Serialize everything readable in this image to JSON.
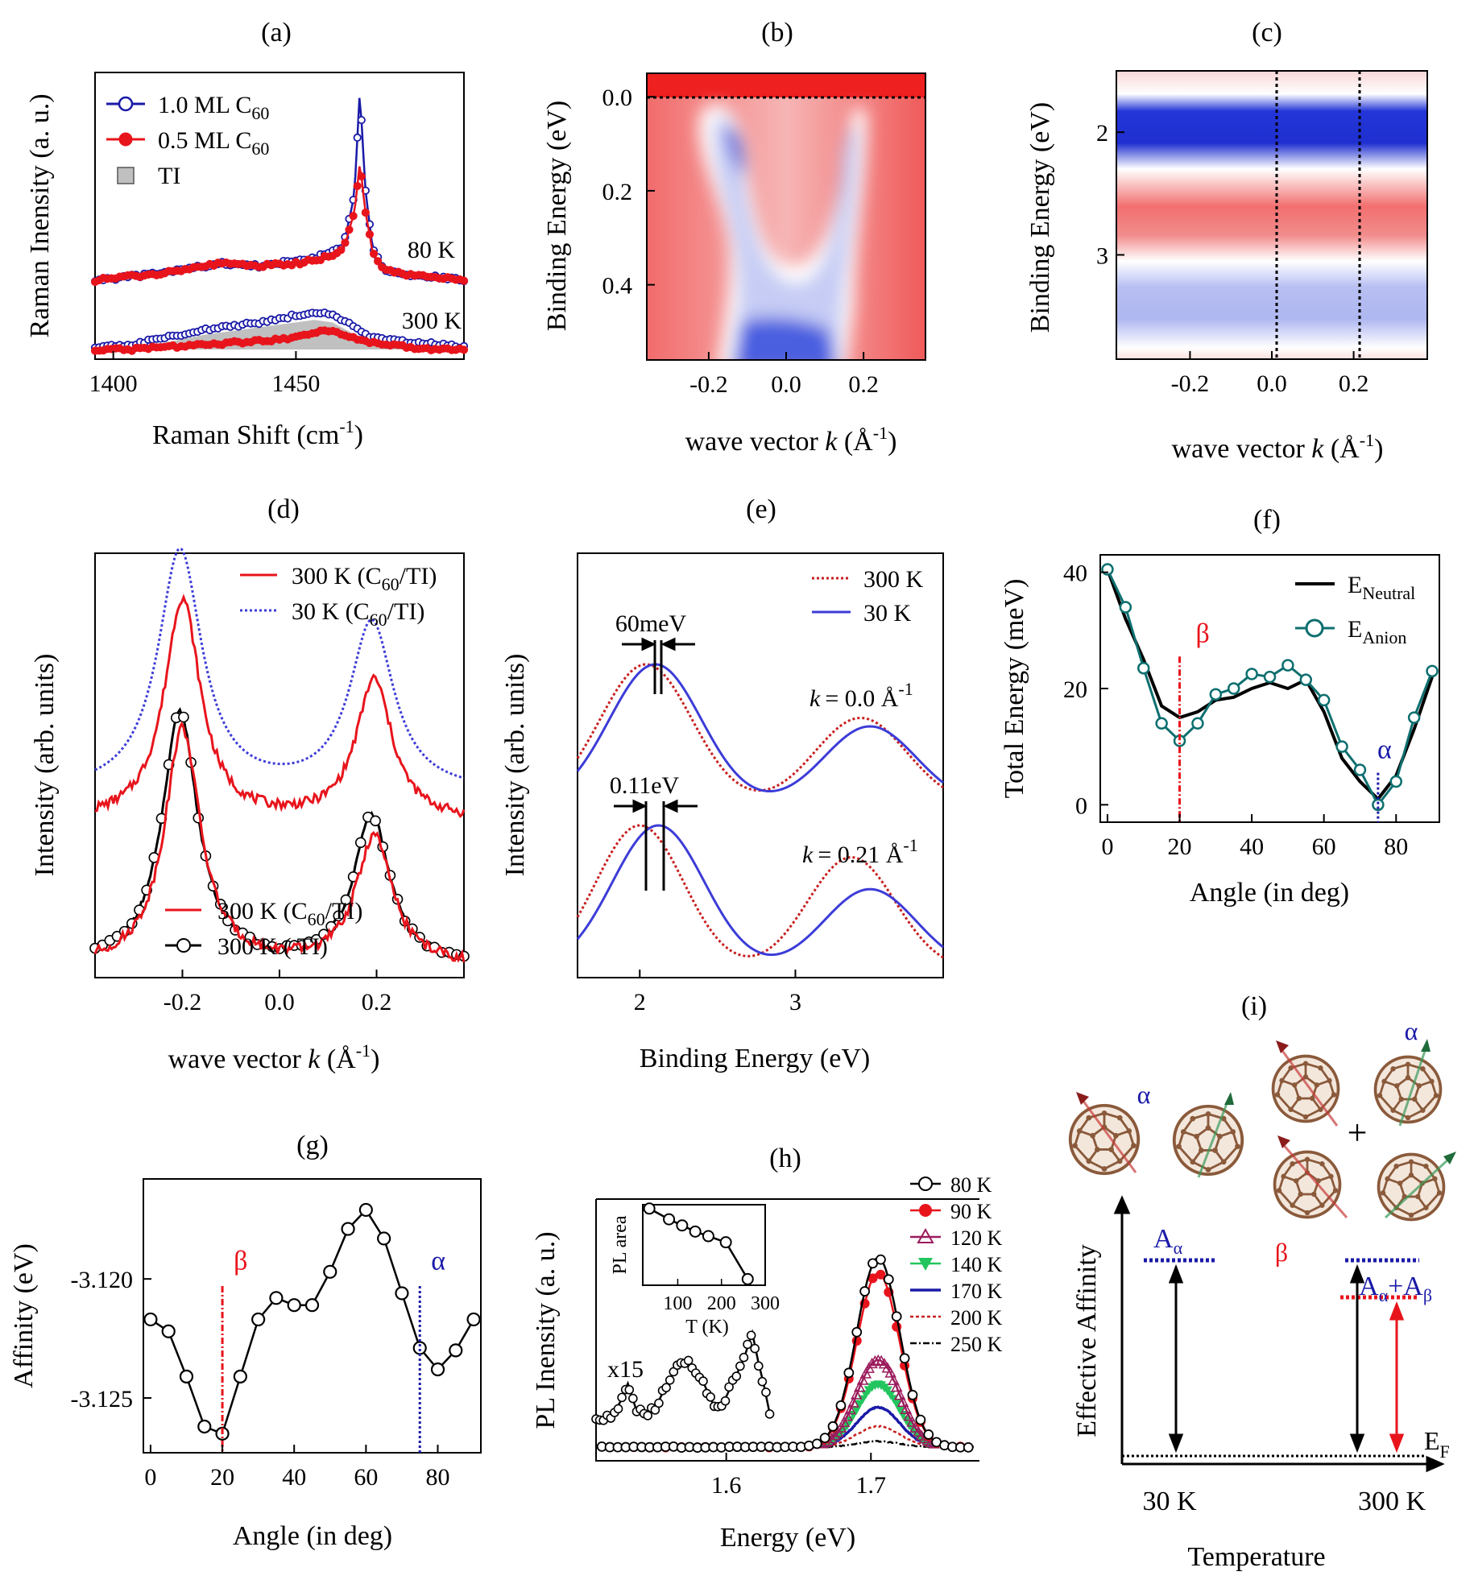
{
  "chart_data": [
    {
      "id": "a",
      "panel_label": "(a)",
      "type": "line",
      "xlabel": "Raman Shift (cm",
      "xlabel_sup": "-1",
      "xlabel_end": ")",
      "ylabel": "Raman Inensity (a. u.)",
      "xlim": [
        1395,
        1496
      ],
      "xticks": [
        1400,
        1450
      ],
      "legend": [
        {
          "text": "1.0 ML C",
          "sub": "60"
        },
        {
          "text": "0.5 ML C",
          "sub": "60"
        },
        {
          "text": "TI"
        }
      ],
      "annotations": [
        "80 K",
        "300 K"
      ],
      "series": [
        {
          "name": "1.0 ML C60 80 K",
          "color": "#1a1aa8",
          "marker": "open-circle",
          "x": [
            1395,
            1410,
            1420,
            1430,
            1440,
            1450,
            1455,
            1460,
            1463,
            1466,
            1467.5,
            1469,
            1471,
            1474,
            1480,
            1490,
            1496
          ],
          "y": [
            0.3,
            0.32,
            0.34,
            0.36,
            0.35,
            0.37,
            0.38,
            0.4,
            0.42,
            0.6,
            0.98,
            0.62,
            0.42,
            0.34,
            0.32,
            0.31,
            0.3
          ]
        },
        {
          "name": "0.5 ML C60 80 K",
          "color": "#e8141c",
          "marker": "filled-circle",
          "x": [
            1395,
            1410,
            1420,
            1430,
            1440,
            1450,
            1455,
            1460,
            1463,
            1466,
            1467.5,
            1469,
            1471,
            1474,
            1480,
            1490,
            1496
          ],
          "y": [
            0.3,
            0.32,
            0.34,
            0.36,
            0.35,
            0.36,
            0.37,
            0.39,
            0.41,
            0.54,
            0.72,
            0.55,
            0.4,
            0.34,
            0.32,
            0.31,
            0.3
          ]
        },
        {
          "name": "1.0 ML C60 300 K",
          "color": "#1a1aa8",
          "marker": "open-circle",
          "x": [
            1395,
            1405,
            1415,
            1425,
            1435,
            1445,
            1450,
            1455,
            1460,
            1465,
            1470,
            1480,
            1490,
            1496
          ],
          "y": [
            0.05,
            0.06,
            0.09,
            0.12,
            0.14,
            0.16,
            0.18,
            0.19,
            0.18,
            0.14,
            0.09,
            0.07,
            0.06,
            0.05
          ]
        },
        {
          "name": "0.5 ML C60 300 K",
          "color": "#e8141c",
          "marker": "filled-circle",
          "x": [
            1395,
            1405,
            1415,
            1425,
            1435,
            1445,
            1450,
            1455,
            1460,
            1465,
            1470,
            1480,
            1490,
            1496
          ],
          "y": [
            0.04,
            0.04,
            0.05,
            0.06,
            0.07,
            0.08,
            0.09,
            0.11,
            0.12,
            0.09,
            0.07,
            0.05,
            0.04,
            0.04
          ]
        },
        {
          "name": "TI",
          "color": "#c0c0c0",
          "fill": true,
          "x": [
            1395,
            1405,
            1415,
            1425,
            1435,
            1445,
            1450,
            1455,
            1460,
            1465,
            1470,
            1480,
            1490,
            1496
          ],
          "y": [
            0.04,
            0.05,
            0.07,
            0.1,
            0.12,
            0.14,
            0.15,
            0.16,
            0.15,
            0.11,
            0.07,
            0.05,
            0.04,
            0.04
          ]
        }
      ]
    },
    {
      "id": "b",
      "panel_label": "(b)",
      "type": "heatmap",
      "xlabel": "wave vector ",
      "xlabel_italic": "k",
      "xlabel_unit": " (Å",
      "xlabel_sup": "-1",
      "xlabel_end": ")",
      "ylabel": "Binding Energy (eV)",
      "xlim": [
        -0.36,
        0.36
      ],
      "ylim": [
        0.56,
        -0.05
      ],
      "xticks": [
        "-0.2",
        "0.0",
        "0.2"
      ],
      "yticks": [
        "0.0",
        "0.2",
        "0.4"
      ],
      "dashed_line_y": 0.0
    },
    {
      "id": "c",
      "panel_label": "(c)",
      "type": "heatmap",
      "xlabel": "wave vector ",
      "xlabel_italic": "k",
      "xlabel_unit": " (Å",
      "xlabel_sup": "-1",
      "xlabel_end": ")",
      "ylabel": "Binding Energy (eV)",
      "xlim": [
        -0.38,
        0.38
      ],
      "ylim": [
        3.85,
        1.5
      ],
      "xticks": [
        "-0.2",
        "0.0",
        "0.2"
      ],
      "yticks": [
        "2",
        "3"
      ],
      "dashed_lines_x": [
        0.0,
        0.21
      ]
    },
    {
      "id": "d",
      "panel_label": "(d)",
      "type": "line",
      "xlabel": "wave vector ",
      "xlabel_italic": "k",
      "xlabel_unit": " (Å",
      "xlabel_sup": "-1",
      "xlabel_end": ")",
      "ylabel": "Intensity (arb. units)",
      "xlim": [
        -0.38,
        0.38
      ],
      "xticks": [
        "-0.2",
        "0.0",
        "0.2"
      ],
      "legend_top": [
        {
          "text": "300 K (C",
          "sub": "60",
          "tail": "/TI)"
        },
        {
          "text": "30 K (C",
          "sub": "60",
          "tail": "/TI)"
        }
      ],
      "legend_bottom": [
        {
          "text": "300 K (C",
          "sub": "60",
          "tail": "/TI)"
        },
        {
          "text": "300 K ( TI)"
        }
      ]
    },
    {
      "id": "e",
      "panel_label": "(e)",
      "type": "line",
      "xlabel": "Binding Energy (eV)",
      "ylabel": "Intensity (arb. units)",
      "xlim": [
        1.6,
        3.95
      ],
      "xticks": [
        "2",
        "3"
      ],
      "legend": [
        {
          "text": "300 K"
        },
        {
          "text": "30 K"
        }
      ],
      "annotations": {
        "shift_top": "60meV",
        "shift_bottom": "0.11eV",
        "k_top": "= 0.0 Å",
        "k_bottom": "= 0.21 Å",
        "k": "k",
        "sup": "-1"
      }
    },
    {
      "id": "f",
      "panel_label": "(f)",
      "type": "line",
      "xlabel": "Angle (in deg)",
      "ylabel": "Total Energy (meV)",
      "xlim": [
        -2,
        92
      ],
      "ylim": [
        -3,
        43
      ],
      "xticks": [
        0,
        20,
        40,
        60,
        80
      ],
      "yticks": [
        0,
        20,
        40
      ],
      "legend": [
        {
          "text": "E",
          "sub": "Neutral"
        },
        {
          "text": "E",
          "sub": "Anion"
        }
      ],
      "markers": [
        {
          "label": "β",
          "x": 20
        },
        {
          "label": "α",
          "x": 75
        }
      ],
      "series": [
        {
          "name": "E_Neutral",
          "color": "#000000",
          "x": [
            0,
            5,
            10,
            15,
            20,
            25,
            30,
            35,
            40,
            45,
            50,
            55,
            60,
            65,
            70,
            75,
            80,
            85,
            90
          ],
          "y": [
            40.5,
            32,
            25,
            17,
            15,
            16,
            18,
            18.5,
            20,
            21,
            20,
            21.5,
            16,
            8,
            4,
            1,
            5,
            13,
            22
          ]
        },
        {
          "name": "E_Anion",
          "color": "#0e6f6f",
          "x": [
            0,
            5,
            10,
            15,
            20,
            25,
            30,
            35,
            40,
            45,
            50,
            55,
            60,
            65,
            70,
            75,
            80,
            85,
            90
          ],
          "y": [
            40.5,
            34,
            23.5,
            14,
            11,
            14,
            19,
            20,
            22.5,
            22,
            24,
            21.5,
            18,
            10,
            6,
            0,
            4,
            15,
            23
          ]
        }
      ]
    },
    {
      "id": "g",
      "panel_label": "(g)",
      "type": "line",
      "xlabel": "Angle (in deg)",
      "ylabel": "Affinity (eV)",
      "xlim": [
        -2,
        92
      ],
      "ylim": [
        -3.1273,
        -3.1158
      ],
      "xticks": [
        0,
        20,
        40,
        60,
        80
      ],
      "yticks": [
        "-3.120",
        "-3.125"
      ],
      "markers": [
        {
          "label": "β",
          "x": 20
        },
        {
          "label": "α",
          "x": 75
        }
      ],
      "series": [
        {
          "name": "Affinity",
          "color": "#000000",
          "x": [
            0,
            5,
            10,
            15,
            20,
            25,
            30,
            35,
            40,
            45,
            50,
            55,
            60,
            65,
            70,
            75,
            80,
            85,
            90
          ],
          "y": [
            -3.1217,
            -3.1222,
            -3.1241,
            -3.1262,
            -3.1265,
            -3.1241,
            -3.1217,
            -3.1208,
            -3.1211,
            -3.1211,
            -3.1197,
            -3.1179,
            -3.1171,
            -3.1183,
            -3.1206,
            -3.1229,
            -3.1238,
            -3.123,
            -3.1217
          ]
        }
      ]
    },
    {
      "id": "h",
      "panel_label": "(h)",
      "type": "line",
      "xlabel": "Energy (eV)",
      "ylabel": "PL Inensity (a. u.)",
      "xlim": [
        1.51,
        1.775
      ],
      "xticks": [
        "1.6",
        "1.7"
      ],
      "legend": [
        "80 K",
        "90 K",
        "120 K",
        "140 K",
        "170 K",
        "200 K",
        "250 K"
      ],
      "x15_label": "x15",
      "inset": {
        "ylabel": "PL area",
        "xlabel": "T (K)",
        "xticks": [
          "100",
          "200",
          "300"
        ],
        "x": [
          35,
          80,
          110,
          140,
          170,
          210,
          260
        ],
        "y": [
          1.0,
          0.86,
          0.78,
          0.7,
          0.64,
          0.56,
          0.08
        ]
      },
      "peaks": [
        {
          "name": "80 K",
          "amp": 1.0,
          "color": "#000000"
        },
        {
          "name": "90 K",
          "amp": 0.92,
          "color": "#e8141c"
        },
        {
          "name": "120 K",
          "amp": 0.46,
          "color": "#9b1b5c"
        },
        {
          "name": "140 K",
          "amp": 0.33,
          "color": "#22c55e"
        },
        {
          "name": "170 K",
          "amp": 0.21,
          "color": "#1a1aa8"
        },
        {
          "name": "200 K",
          "amp": 0.11,
          "color": "#c81e1e"
        },
        {
          "name": "250 K",
          "amp": 0.03,
          "color": "#000000"
        }
      ]
    },
    {
      "id": "i",
      "panel_label": "(i)",
      "type": "diagram",
      "xlabel": "Temperature",
      "ylabel": "Effective Affinity",
      "xtick_labels": [
        "30 K",
        "300 K"
      ],
      "labels": {
        "alpha": "α",
        "beta": "β",
        "plus": "+",
        "ef": "E",
        "ef_sub": "F",
        "a_alpha": "A",
        "a_alpha_sub": "α",
        "sum_a": "A",
        "sum_sub1": "α",
        "sum_plus": "+A",
        "sum_sub2": "β"
      }
    }
  ]
}
